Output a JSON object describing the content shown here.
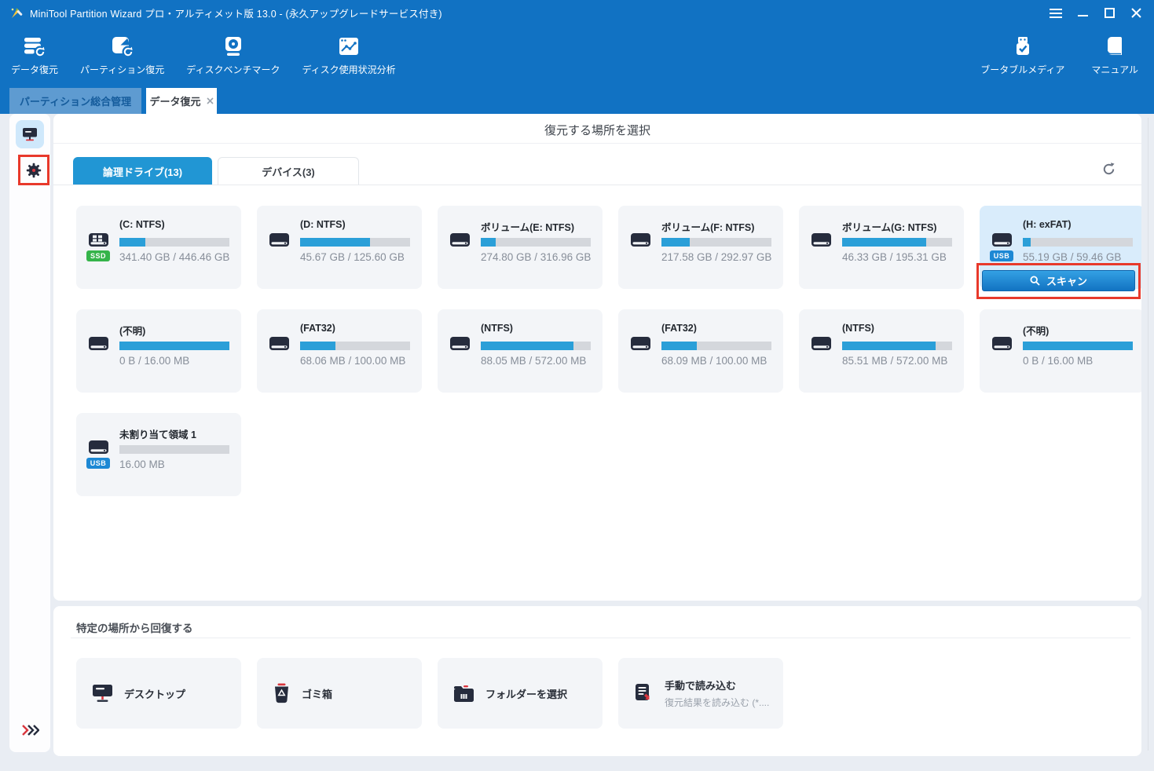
{
  "window": {
    "title": "MiniTool Partition Wizard プロ・アルティメット版 13.0 - (永久アップグレードサービス付き)"
  },
  "toolbar": {
    "items_left": [
      {
        "label": "データ復元",
        "icon": "data-recovery-icon"
      },
      {
        "label": "パーティション復元",
        "icon": "partition-recovery-icon"
      },
      {
        "label": "ディスクベンチマーク",
        "icon": "disk-benchmark-icon"
      },
      {
        "label": "ディスク使用状況分析",
        "icon": "disk-usage-analysis-icon"
      }
    ],
    "items_right": [
      {
        "label": "ブータブルメディア",
        "icon": "bootable-media-icon"
      },
      {
        "label": "マニュアル",
        "icon": "manual-icon"
      }
    ]
  },
  "tabs": [
    {
      "label": "パーティション総合管理",
      "active": false
    },
    {
      "label": "データ復元",
      "active": true,
      "closable": true
    }
  ],
  "main": {
    "title": "復元する場所を選択",
    "subtabs": [
      {
        "label": "論理ドライブ(13)",
        "active": true
      },
      {
        "label": "デバイス(3)",
        "active": false
      }
    ],
    "scan_label": "スキャン",
    "drives": [
      {
        "name": "(C: NTFS)",
        "size": "341.40 GB / 446.46 GB",
        "fill": 23.5,
        "badge": "SSD",
        "icon": "ssd-drive-icon"
      },
      {
        "name": "(D: NTFS)",
        "size": "45.67 GB / 125.60 GB",
        "fill": 63.6,
        "icon": "hdd-drive-icon"
      },
      {
        "name": "ボリューム(E: NTFS)",
        "size": "274.80 GB / 316.96 GB",
        "fill": 13.3,
        "icon": "hdd-drive-icon"
      },
      {
        "name": "ボリューム(F: NTFS)",
        "size": "217.58 GB / 292.97 GB",
        "fill": 25.7,
        "icon": "hdd-drive-icon"
      },
      {
        "name": "ボリューム(G: NTFS)",
        "size": "46.33 GB / 195.31 GB",
        "fill": 76.3,
        "icon": "hdd-drive-icon"
      },
      {
        "name": "(H: exFAT)",
        "size": "55.19 GB / 59.46 GB",
        "fill": 7.2,
        "badge": "USB",
        "icon": "hdd-drive-icon",
        "highlighted": true
      },
      {
        "name": "(不明)",
        "size": "0 B / 16.00 MB",
        "fill": 100,
        "icon": "hdd-drive-icon"
      },
      {
        "name": "(FAT32)",
        "size": "68.06 MB / 100.00 MB",
        "fill": 32,
        "icon": "hdd-drive-icon"
      },
      {
        "name": "(NTFS)",
        "size": "88.05 MB / 572.00 MB",
        "fill": 84.6,
        "icon": "hdd-drive-icon"
      },
      {
        "name": "(FAT32)",
        "size": "68.09 MB / 100.00 MB",
        "fill": 32,
        "icon": "hdd-drive-icon"
      },
      {
        "name": "(NTFS)",
        "size": "85.51 MB / 572.00 MB",
        "fill": 85,
        "icon": "hdd-drive-icon"
      },
      {
        "name": "(不明)",
        "size": "0 B / 16.00 MB",
        "fill": 100,
        "icon": "hdd-drive-icon"
      },
      {
        "name": "未割り当て領域 1",
        "size": "16.00 MB",
        "fill": 0,
        "badge": "USB",
        "icon": "hdd-drive-icon"
      }
    ]
  },
  "recover_section": {
    "title": "特定の場所から回復する",
    "items": [
      {
        "label": "デスクトップ",
        "icon": "desktop-icon"
      },
      {
        "label": "ゴミ箱",
        "icon": "recycle-bin-icon"
      },
      {
        "label": "フォルダーを選択",
        "icon": "folder-select-icon"
      },
      {
        "label": "手動で読み込む",
        "sublabel": "復元結果を読み込む (*....",
        "icon": "manual-load-icon"
      }
    ]
  },
  "colors": {
    "titlebar_blue": "#1172c3",
    "accent_blue": "#2196d4",
    "progress_fill": "#2b9fd8",
    "progress_track": "#d4d7dc",
    "annotation_red": "#e8392b",
    "ssd_badge_green": "#35b44a",
    "usb_badge_blue": "#1d88d4"
  }
}
